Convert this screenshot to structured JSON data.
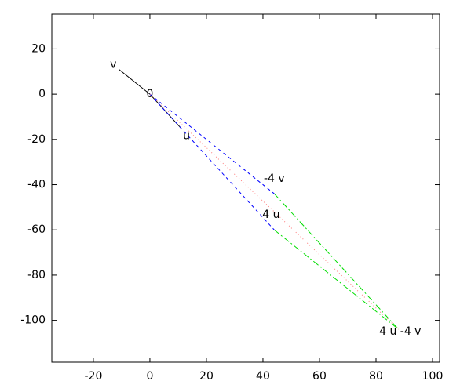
{
  "chart_data": {
    "type": "vector",
    "xlim": [
      -34.7,
      102.5
    ],
    "ylim": [
      -118.5,
      35.4
    ],
    "xticks": [
      -20,
      0,
      20,
      40,
      60,
      80,
      100
    ],
    "yticks": [
      -100,
      -80,
      -60,
      -40,
      -20,
      0,
      20
    ],
    "points": [
      {
        "label": "0",
        "x": 0,
        "y": 0
      },
      {
        "label": "v",
        "x": -11,
        "y": 11
      },
      {
        "label": "u",
        "x": 11,
        "y": -15
      },
      {
        "label": "-4 v",
        "x": 44,
        "y": -44
      },
      {
        "label": "4 u",
        "x": 44,
        "y": -60
      },
      {
        "label": "4 u -4 v",
        "x": 88,
        "y": -104
      }
    ],
    "segments": [
      {
        "from": 0,
        "to": 1,
        "color": "#000000",
        "dash": "solid"
      },
      {
        "from": 0,
        "to": 2,
        "color": "#000000",
        "dash": "solid"
      },
      {
        "from": 0,
        "to": 3,
        "color": "#0000ff",
        "dash": "dashed"
      },
      {
        "from": 0,
        "to": 4,
        "color": "#0000ff",
        "dash": "dashed"
      },
      {
        "from": 3,
        "to": 5,
        "color": "#00dd00",
        "dash": "dashdot"
      },
      {
        "from": 4,
        "to": 5,
        "color": "#00dd00",
        "dash": "dashdot"
      },
      {
        "from": 0,
        "to": 5,
        "color": "#ff8080",
        "dash": "dotted"
      }
    ]
  }
}
